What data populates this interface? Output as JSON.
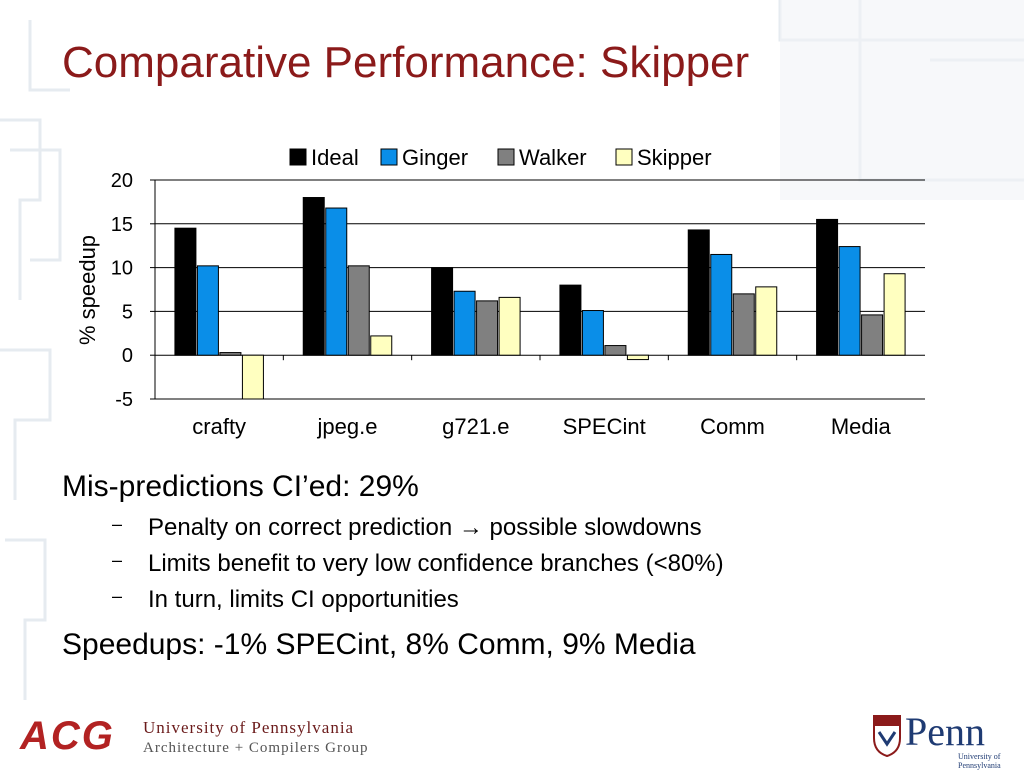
{
  "slide": {
    "title": "Comparative Performance: Skipper"
  },
  "chart_data": {
    "type": "bar",
    "title": "",
    "ylabel": "% speedup",
    "xlabel": "",
    "ylim": [
      -5,
      20
    ],
    "yticks": [
      -5,
      0,
      5,
      10,
      15,
      20
    ],
    "categories": [
      "crafty",
      "jpeg.e",
      "g721.e",
      "SPECint",
      "Comm",
      "Media"
    ],
    "series": [
      {
        "name": "Ideal",
        "color": "#000000",
        "values": [
          14.5,
          18.0,
          10.0,
          8.0,
          14.3,
          15.5
        ]
      },
      {
        "name": "Ginger",
        "color": "#0a8ee8",
        "values": [
          10.2,
          16.8,
          7.3,
          5.1,
          11.5,
          12.4
        ]
      },
      {
        "name": "Walker",
        "color": "#808080",
        "values": [
          0.3,
          10.2,
          6.2,
          1.1,
          7.0,
          4.6
        ]
      },
      {
        "name": "Skipper",
        "color": "#ffffc0",
        "values": [
          -5.0,
          2.2,
          6.6,
          -0.5,
          7.8,
          9.3
        ]
      }
    ],
    "legend_position": "top",
    "grid": true
  },
  "bullets": {
    "main1": "Mis-predictions CI’ed: 29%",
    "subs": [
      "Penalty on correct prediction → possible slowdowns",
      "Limits benefit to very low confidence branches (<80%)",
      "In turn, limits CI opportunities"
    ],
    "sub_marker": "–",
    "main2": "Speedups: -1% SPECint, 8% Comm, 9% Media"
  },
  "footer": {
    "acg": "ACG",
    "line1": "University of Pennsylvania",
    "line2": "Architecture + Compilers Group",
    "penn": "Penn",
    "penn_sub": "University of Pennsylvania"
  }
}
